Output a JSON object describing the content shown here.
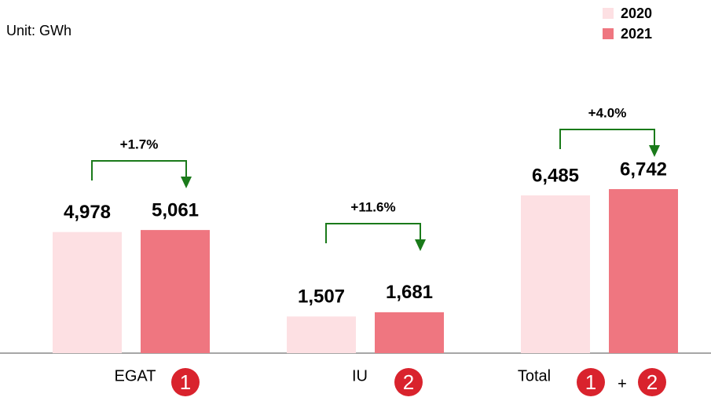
{
  "chart_data": {
    "type": "bar",
    "unit_label": "Unit: GWh",
    "categories": [
      "EGAT",
      "IU",
      "Total"
    ],
    "category_badges": [
      [
        "1"
      ],
      [
        "2"
      ],
      [
        "1",
        "2"
      ]
    ],
    "badge_joiner": "+",
    "series": [
      {
        "name": "2020",
        "color": "#fde0e3",
        "values": [
          4978,
          1507,
          6485
        ],
        "value_labels": [
          "4,978",
          "1,507",
          "6,485"
        ]
      },
      {
        "name": "2021",
        "color": "#ef7680",
        "values": [
          5061,
          1681,
          6742
        ],
        "value_labels": [
          "5,061",
          "1,681",
          "6,742"
        ]
      }
    ],
    "annotations": [
      "+1.7%",
      "+11.6%",
      "+4.0%"
    ],
    "annotation_color": "#1a7a1a",
    "badge_color": "#d9232d",
    "legend": "top-right"
  }
}
